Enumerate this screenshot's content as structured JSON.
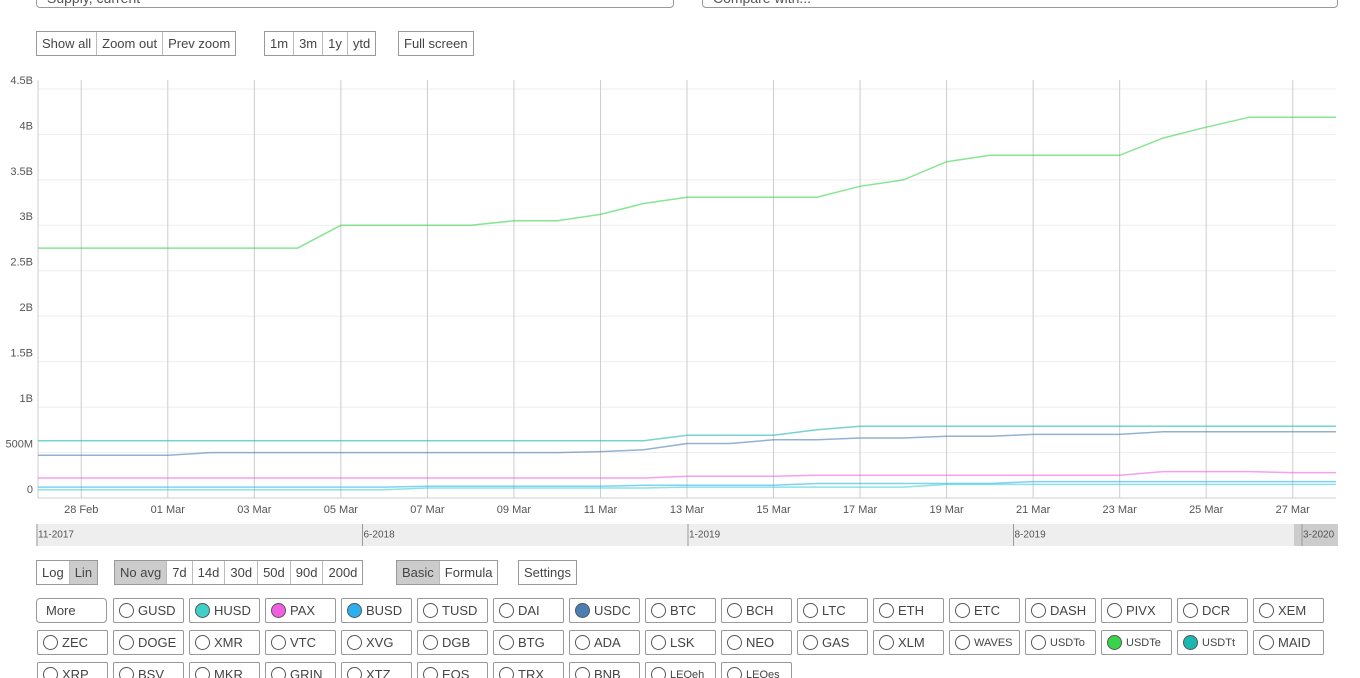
{
  "controls": {
    "metric": "Supply, current",
    "compare": "Compare with...",
    "zoom_groups": [
      [
        {
          "label": "Show all"
        },
        {
          "label": "Zoom out"
        },
        {
          "label": "Prev zoom"
        }
      ],
      [
        {
          "label": "1m"
        },
        {
          "label": "3m"
        },
        {
          "label": "1y"
        },
        {
          "label": "ytd"
        }
      ],
      [
        {
          "label": "Full screen"
        }
      ]
    ],
    "option_groups": [
      [
        {
          "label": "Log"
        },
        {
          "label": "Lin",
          "active": true
        }
      ],
      [
        {
          "label": "No avg",
          "active": true
        },
        {
          "label": "7d"
        },
        {
          "label": "14d"
        },
        {
          "label": "30d"
        },
        {
          "label": "50d"
        },
        {
          "label": "90d"
        },
        {
          "label": "200d"
        }
      ],
      [
        {
          "label": "Basic",
          "active": true
        },
        {
          "label": "Formula"
        }
      ],
      [
        {
          "label": "Settings"
        }
      ]
    ],
    "more": "More",
    "assets": [
      [
        "GUSD",
        "HUSD",
        "PAX",
        "BUSD",
        "TUSD",
        "DAI",
        "USDC",
        "BTC",
        "BCH",
        "LTC",
        "ETH",
        "ETC",
        "DASH",
        "PIVX",
        "DCR",
        "XEM"
      ],
      [
        "ZEC",
        "DOGE",
        "XMR",
        "VTC",
        "XVG",
        "DGB",
        "BTG",
        "ADA",
        "LSK",
        "NEO",
        "GAS",
        "XLM",
        "WAVES",
        "USDTo",
        "USDTe",
        "USDTt",
        "MAID"
      ],
      [
        "XRP",
        "BSV",
        "MKR",
        "GRIN",
        "XTZ",
        "EOS",
        "TRX",
        "BNB",
        "LEOeh",
        "LEOes"
      ]
    ]
  },
  "chart_data": {
    "type": "line",
    "categories": [
      null,
      "28 Feb",
      null,
      "01 Mar",
      null,
      "03 Mar",
      null,
      "05 Mar",
      null,
      "07 Mar",
      null,
      "09 Mar",
      null,
      "11 Mar",
      null,
      "13 Mar",
      null,
      "15 Mar",
      null,
      "17 Mar",
      null,
      "19 Mar",
      null,
      "21 Mar",
      null,
      "23 Mar",
      null,
      "25 Mar",
      null,
      "27 Mar",
      null
    ],
    "ylim": [
      0,
      4.5
    ],
    "yticks": [
      0,
      {
        "value": 0.5,
        "label": "500M"
      },
      {
        "value": 1,
        "label": "1B"
      },
      {
        "value": 1.5,
        "label": "1.5B"
      },
      {
        "value": 2,
        "label": "2B"
      },
      {
        "value": 2.5,
        "label": "2.5B"
      },
      {
        "value": 3,
        "label": "3B"
      },
      {
        "value": 3.5,
        "label": "3.5B"
      },
      {
        "value": 4,
        "label": "4B"
      },
      {
        "value": 4.5,
        "label": "4.5B"
      }
    ],
    "grid": true,
    "series": [
      {
        "name": "USDTe",
        "color": "#37d64a",
        "values": [
          2.75,
          2.75,
          2.75,
          2.75,
          2.75,
          2.75,
          2.75,
          3.0,
          3.0,
          3.0,
          3.0,
          3.05,
          3.05,
          3.12,
          3.24,
          3.31,
          3.31,
          3.31,
          3.31,
          3.43,
          3.5,
          3.7,
          3.77,
          3.77,
          3.77,
          3.77,
          3.96,
          4.08,
          4.19,
          4.19,
          4.19
        ]
      },
      {
        "name": "USDTt",
        "color": "#1ab8b0",
        "values": [
          0.63,
          0.63,
          0.63,
          0.63,
          0.63,
          0.63,
          0.63,
          0.63,
          0.63,
          0.63,
          0.63,
          0.63,
          0.63,
          0.63,
          0.63,
          0.69,
          0.69,
          0.69,
          0.75,
          0.79,
          0.79,
          0.79,
          0.79,
          0.79,
          0.79,
          0.79,
          0.79,
          0.79,
          0.79,
          0.79,
          0.79
        ]
      },
      {
        "name": "USDC",
        "color": "#4a7fb5",
        "values": [
          0.47,
          0.47,
          0.47,
          0.47,
          0.5,
          0.5,
          0.5,
          0.5,
          0.5,
          0.5,
          0.5,
          0.5,
          0.5,
          0.51,
          0.53,
          0.6,
          0.6,
          0.64,
          0.64,
          0.66,
          0.66,
          0.68,
          0.68,
          0.7,
          0.7,
          0.7,
          0.73,
          0.73,
          0.73,
          0.73,
          0.73
        ]
      },
      {
        "name": "PAX",
        "color": "#f060e0",
        "values": [
          0.22,
          0.22,
          0.22,
          0.22,
          0.22,
          0.22,
          0.22,
          0.22,
          0.22,
          0.22,
          0.22,
          0.22,
          0.22,
          0.22,
          0.22,
          0.24,
          0.24,
          0.24,
          0.25,
          0.25,
          0.25,
          0.25,
          0.25,
          0.25,
          0.25,
          0.25,
          0.29,
          0.29,
          0.29,
          0.28,
          0.28
        ]
      },
      {
        "name": "BUSD",
        "color": "#2bb0f0",
        "values": [
          0.12,
          0.12,
          0.12,
          0.12,
          0.12,
          0.12,
          0.12,
          0.12,
          0.12,
          0.13,
          0.13,
          0.13,
          0.13,
          0.13,
          0.14,
          0.14,
          0.14,
          0.14,
          0.16,
          0.16,
          0.16,
          0.16,
          0.16,
          0.18,
          0.18,
          0.18,
          0.18,
          0.18,
          0.18,
          0.18,
          0.18
        ]
      },
      {
        "name": "HUSD",
        "color": "#3fd0c9",
        "values": [
          0.09,
          0.09,
          0.09,
          0.09,
          0.09,
          0.09,
          0.09,
          0.09,
          0.09,
          0.11,
          0.11,
          0.11,
          0.11,
          0.11,
          0.11,
          0.12,
          0.12,
          0.12,
          0.12,
          0.12,
          0.12,
          0.15,
          0.15,
          0.15,
          0.15,
          0.15,
          0.15,
          0.15,
          0.15,
          0.15,
          0.15
        ]
      }
    ],
    "navigator": [
      "11-2017",
      "6-2018",
      "1-2019",
      "8-2019",
      "3-2020"
    ]
  }
}
